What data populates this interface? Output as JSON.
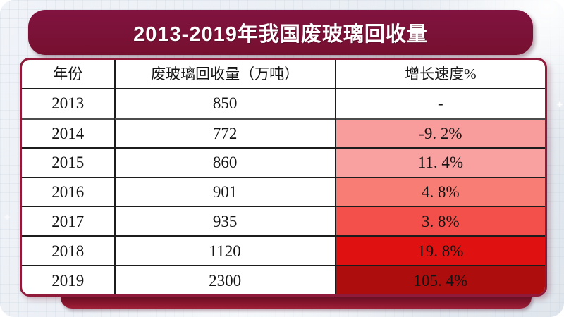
{
  "page": {
    "background": "#ffffff",
    "panel_color": "#e9eef4",
    "sparkle": "+"
  },
  "banner": {
    "title": "2013-2019年我国废玻璃回收量",
    "bg_color": "#7a1238",
    "text_color": "#ffffff"
  },
  "footer_bar": {
    "color": "#8e1c33"
  },
  "table": {
    "border_color": "#8f1a3a",
    "header": {
      "year": "年份",
      "volume": "废玻璃回收量（万吨）",
      "growth": "增长速度%"
    },
    "rows": [
      {
        "year": "2013",
        "volume": "850",
        "growth": "-",
        "growth_bg": "#ffffff"
      },
      {
        "year": "2014",
        "volume": "772",
        "growth": "-9. 2%",
        "growth_bg": "#f89c9c"
      },
      {
        "year": "2015",
        "volume": "860",
        "growth": "11. 4%",
        "growth_bg": "#f9a0a0"
      },
      {
        "year": "2016",
        "volume": "901",
        "growth": "4. 8%",
        "growth_bg": "#f87d75"
      },
      {
        "year": "2017",
        "volume": "935",
        "growth": "3. 8%",
        "growth_bg": "#f4504b"
      },
      {
        "year": "2018",
        "volume": "1120",
        "growth": "19. 8%",
        "growth_bg": "#e01111"
      },
      {
        "year": "2019",
        "volume": "2300",
        "growth": "105. 4%",
        "growth_bg": "#ae0d0d"
      }
    ]
  },
  "chart_data": {
    "type": "table",
    "title": "2013-2019年我国废玻璃回收量",
    "columns": [
      "年份",
      "废玻璃回收量（万吨）",
      "增长速度%"
    ],
    "years": [
      2013,
      2014,
      2015,
      2016,
      2017,
      2018,
      2019
    ],
    "recycling_volume_wan_tons": [
      850,
      772,
      860,
      901,
      935,
      1120,
      2300
    ],
    "growth_rate_pct": [
      null,
      -9.2,
      11.4,
      4.8,
      3.8,
      19.8,
      105.4
    ],
    "growth_cell_colors": [
      "#ffffff",
      "#f89c9c",
      "#f9a0a0",
      "#f87d75",
      "#f4504b",
      "#e01111",
      "#ae0d0d"
    ]
  }
}
